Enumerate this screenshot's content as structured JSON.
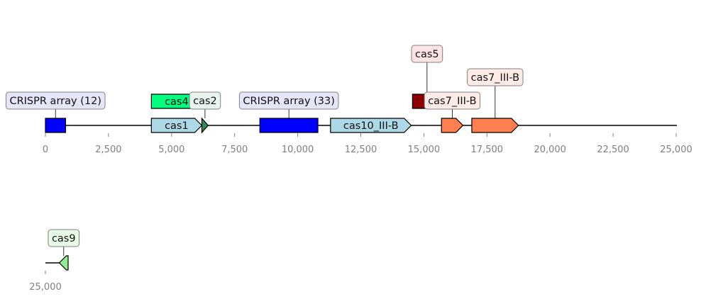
{
  "tracks": [
    {
      "ticks": [
        0,
        2500,
        5000,
        7500,
        10000,
        12500,
        15000,
        17500,
        20000,
        22500,
        25000
      ],
      "tick_labels": [
        "0",
        "2,500",
        "5,000",
        "7,500",
        "10,000",
        "12,500",
        "15,000",
        "17,500",
        "20,000",
        "22,500",
        "25,000"
      ],
      "features": [
        {
          "label": "CRISPR array (12)",
          "start": 0,
          "end": 800,
          "strand": 0,
          "color": "#0000ff",
          "label_bg": "#e6e6fa",
          "label_mode": "box"
        },
        {
          "label": "cas1",
          "start": 4200,
          "end": 6200,
          "strand": 1,
          "color": "#add8e6",
          "label_mode": "inline"
        },
        {
          "label": "cas4",
          "start": 4200,
          "end": 6200,
          "strand": 1,
          "color": "#00ff7f",
          "label_mode": "inline",
          "row": "up"
        },
        {
          "label": "cas2",
          "start": 6200,
          "end": 6450,
          "strand": 1,
          "color": "#2e8b57",
          "label_bg": "#e8f5ee",
          "label_mode": "box"
        },
        {
          "label": "CRISPR array (33)",
          "start": 8500,
          "end": 10800,
          "strand": 0,
          "color": "#0000ff",
          "label_bg": "#e6e6fa",
          "label_mode": "box"
        },
        {
          "label": "cas10_III-B",
          "start": 11300,
          "end": 14500,
          "strand": 1,
          "color": "#add8e6",
          "label_mode": "inline"
        },
        {
          "label": "cas5",
          "start": 14550,
          "end": 15700,
          "strand": 1,
          "color": "#8b0000",
          "label_bg": "#fde4e4",
          "label_mode": "box",
          "row": "up"
        },
        {
          "label": "cas7_III-B",
          "start": 15700,
          "end": 16550,
          "strand": 1,
          "color": "#ff7f50",
          "label_bg": "#ffece6",
          "label_mode": "box"
        },
        {
          "label": "cas7_III-B",
          "start": 16900,
          "end": 18750,
          "strand": 1,
          "color": "#ff7f50",
          "label_bg": "#ffece6",
          "label_mode": "box"
        }
      ]
    },
    {
      "ticks": [
        25000
      ],
      "tick_labels": [
        "25,000"
      ],
      "features": [
        {
          "label": "cas9",
          "start": 25550,
          "end": 25900,
          "strand": -1,
          "color": "#90ee90",
          "label_bg": "#e8fbe8",
          "label_mode": "box"
        }
      ]
    }
  ]
}
